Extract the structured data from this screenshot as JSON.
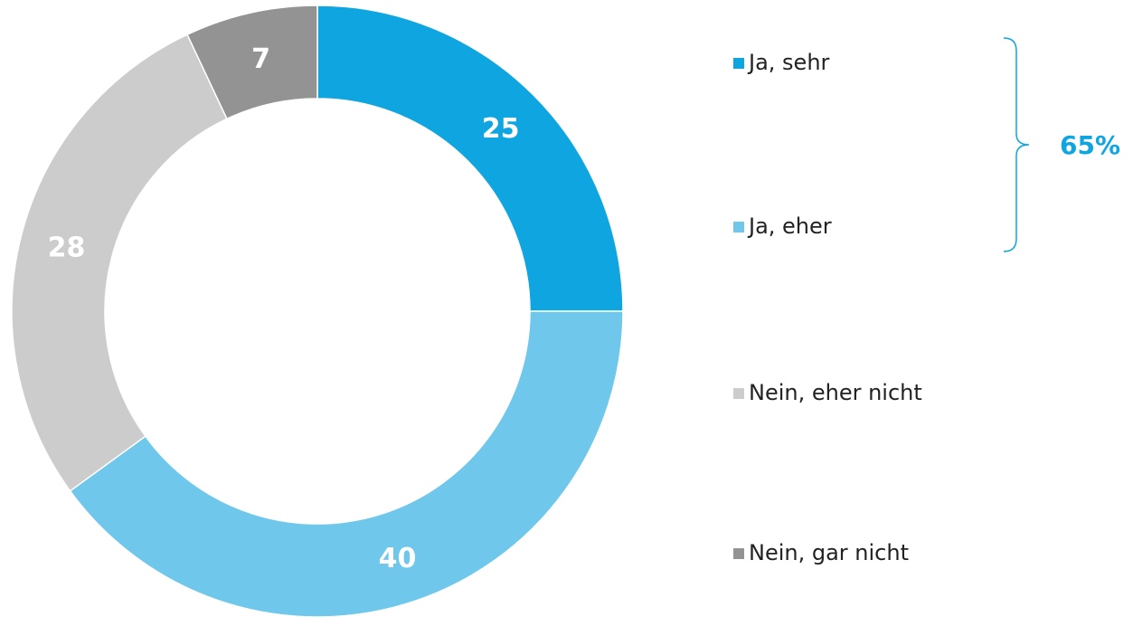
{
  "chart_data": {
    "type": "donut",
    "categories": [
      "Ja, sehr",
      "Ja, eher",
      "Nein, eher nicht",
      "Nein, gar nicht"
    ],
    "values": [
      25,
      40,
      28,
      7
    ],
    "colors": [
      "#0ea5e0",
      "#6fc8ec",
      "#cccccc",
      "#939393"
    ],
    "annotation": "65%"
  }
}
